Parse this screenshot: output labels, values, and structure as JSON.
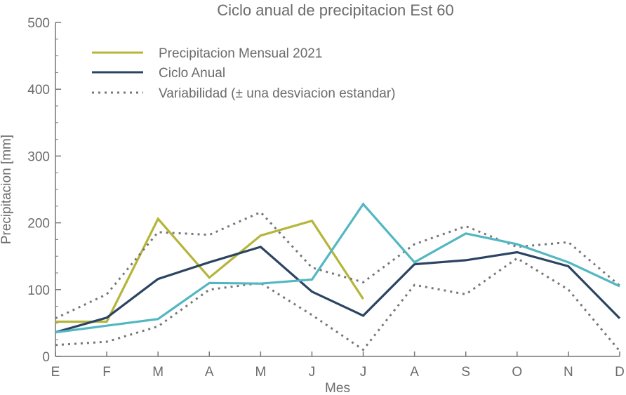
{
  "chart_data": {
    "type": "line",
    "title": "Ciclo anual de precipitacion Est 60",
    "xlabel": "Mes",
    "ylabel": "Precipitacion [mm]",
    "ylim": [
      0,
      500
    ],
    "yticks": [
      0,
      100,
      200,
      300,
      400,
      500
    ],
    "grid": false,
    "legend_position": "top-left",
    "categories": [
      "E",
      "F",
      "M",
      "A",
      "M",
      "J",
      "J",
      "A",
      "S",
      "O",
      "N",
      "D"
    ],
    "series": [
      {
        "name": "Precipitacion Mensual 2021",
        "color": "#b5b53a",
        "style": "solid",
        "in_legend": true,
        "values": [
          52,
          52,
          206,
          118,
          181,
          203,
          86,
          null,
          null,
          null,
          null,
          null
        ]
      },
      {
        "name": "Ciclo Anual",
        "color": "#2b4462",
        "style": "solid",
        "in_legend": true,
        "values": [
          36,
          58,
          116,
          141,
          164,
          97,
          61,
          138,
          144,
          156,
          135,
          57
        ]
      },
      {
        "name": "Variabilidad (± una desviacion estandar)",
        "color": "#777777",
        "style": "dotted",
        "in_legend": true,
        "values": [
          57,
          93,
          186,
          182,
          216,
          133,
          111,
          168,
          195,
          164,
          171,
          106
        ]
      },
      {
        "name": "",
        "color": "#777777",
        "style": "dotted",
        "in_legend": false,
        "values": [
          17,
          22,
          45,
          100,
          110,
          62,
          10,
          107,
          93,
          147,
          100,
          8
        ]
      },
      {
        "name": "",
        "color": "#52b7c2",
        "style": "solid",
        "in_legend": false,
        "values": [
          36,
          46,
          56,
          110,
          109,
          115,
          228,
          141,
          184,
          168,
          141,
          105
        ]
      }
    ]
  }
}
